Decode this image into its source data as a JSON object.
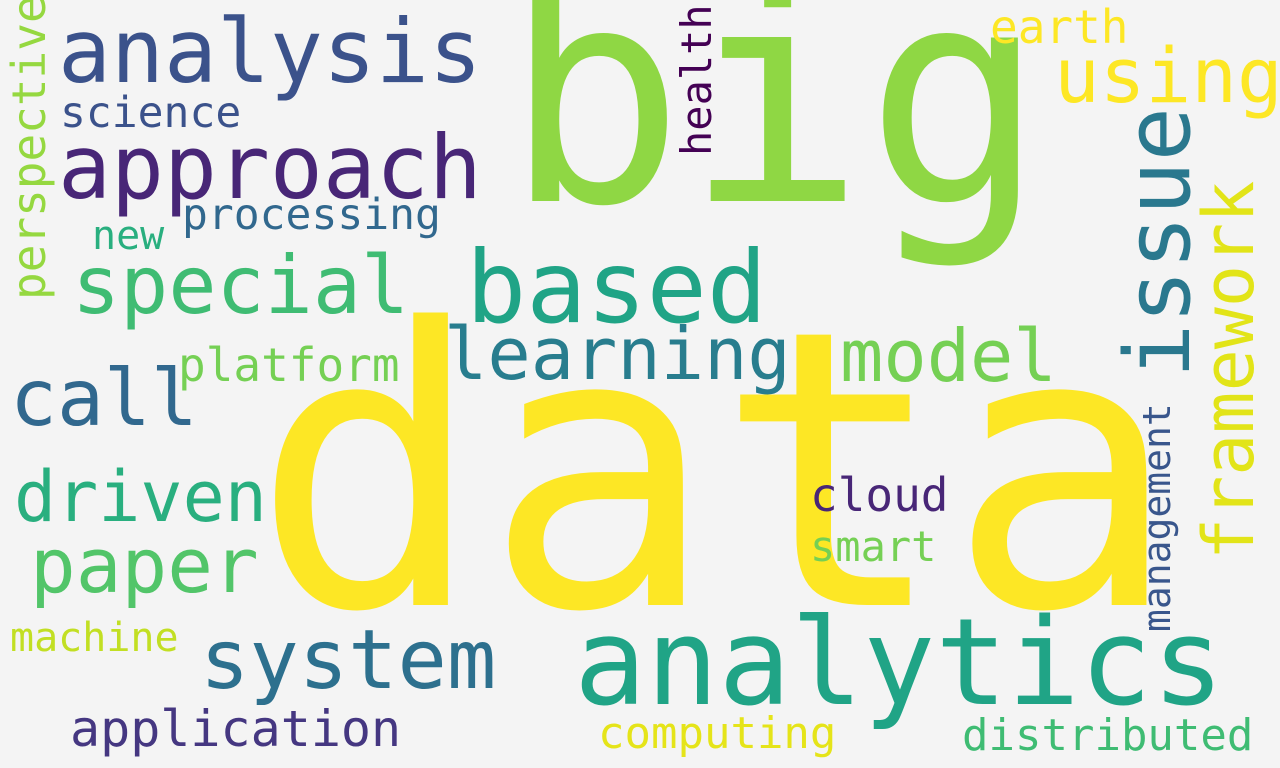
{
  "words": {
    "big": {
      "text": "big",
      "color": "#8fd744"
    },
    "data": {
      "text": "data",
      "color": "#fde725"
    },
    "analytics": {
      "text": "analytics",
      "color": "#20a486"
    },
    "analysis": {
      "text": "analysis",
      "color": "#3b528b"
    },
    "approach": {
      "text": "approach",
      "color": "#482677"
    },
    "science": {
      "text": "science",
      "color": "#3b528b"
    },
    "processing": {
      "text": "processing",
      "color": "#31688e"
    },
    "new": {
      "text": "new",
      "color": "#29af7f"
    },
    "special": {
      "text": "special",
      "color": "#3fbc73"
    },
    "based": {
      "text": "based",
      "color": "#20a486"
    },
    "learning": {
      "text": "learning",
      "color": "#287d8e"
    },
    "model": {
      "text": "model",
      "color": "#75d054"
    },
    "platform": {
      "text": "platform",
      "color": "#75d054"
    },
    "call": {
      "text": "call",
      "color": "#31688e"
    },
    "driven": {
      "text": "driven",
      "color": "#29af7f"
    },
    "paper": {
      "text": "paper",
      "color": "#52c569"
    },
    "system": {
      "text": "system",
      "color": "#2d708e"
    },
    "application": {
      "text": "application",
      "color": "#453781"
    },
    "machine": {
      "text": "machine",
      "color": "#c2df23"
    },
    "computing": {
      "text": "computing",
      "color": "#e5e419"
    },
    "distributed": {
      "text": "distributed",
      "color": "#3fbc73"
    },
    "cloud": {
      "text": "cloud",
      "color": "#482677"
    },
    "smart": {
      "text": "smart",
      "color": "#75d054"
    },
    "earth": {
      "text": "earth",
      "color": "#fde725"
    },
    "using": {
      "text": "using",
      "color": "#fde725"
    },
    "perspective": {
      "text": "perspective",
      "color": "#95d840"
    },
    "health": {
      "text": "health",
      "color": "#440154"
    },
    "issue": {
      "text": "issue",
      "color": "#2a788e"
    },
    "framework": {
      "text": "framework",
      "color": "#e2e418"
    },
    "management": {
      "text": "management",
      "color": "#39568c"
    }
  }
}
